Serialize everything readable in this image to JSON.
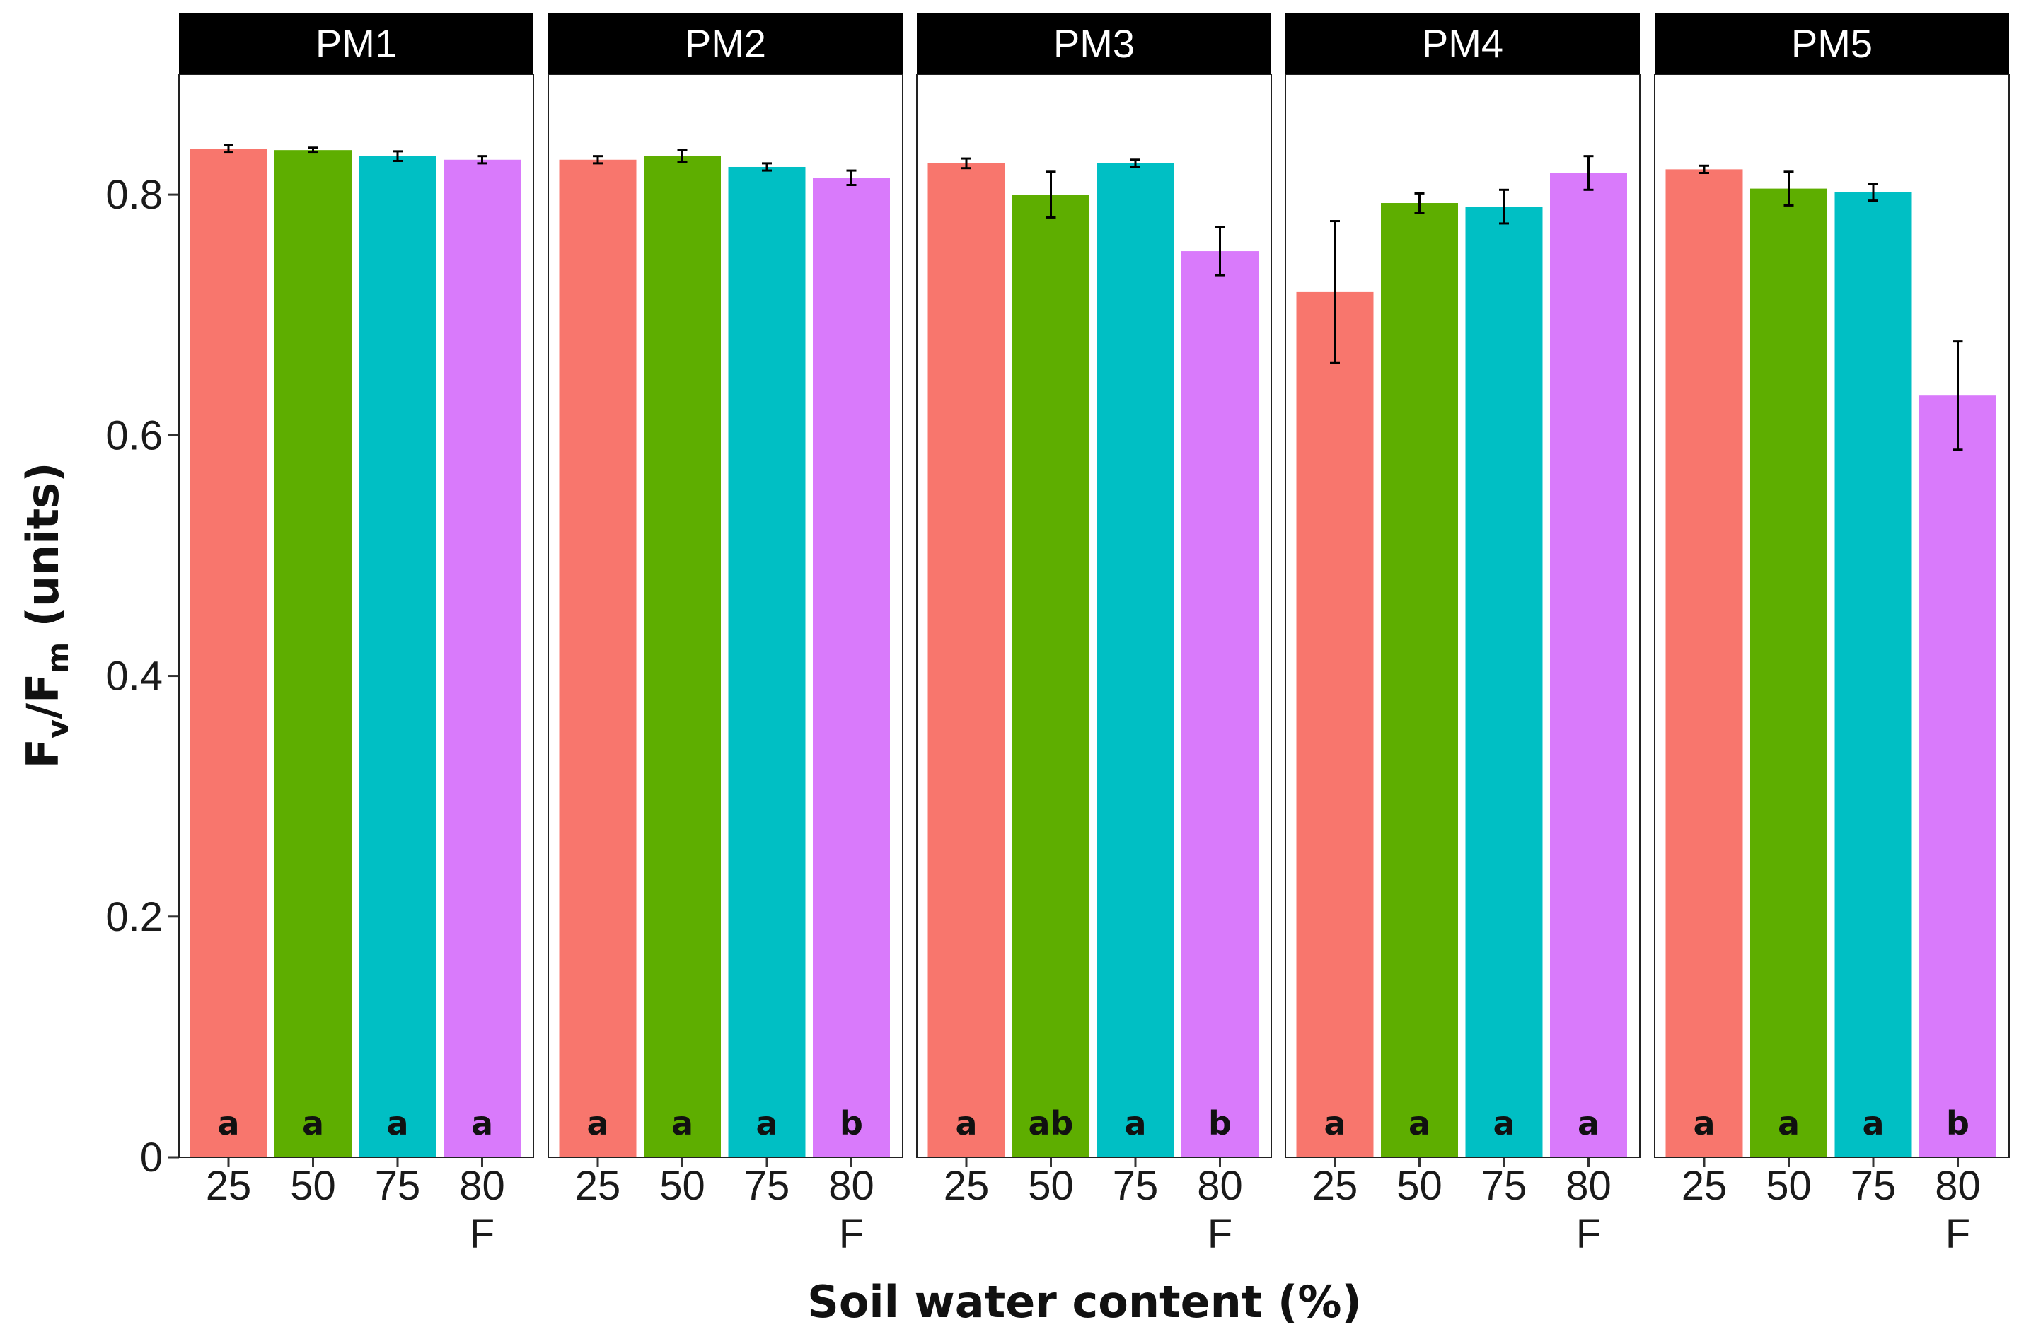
{
  "chart_data": {
    "type": "bar",
    "xlabel": "Soil water content (%)",
    "ylabel": {
      "main": "F",
      "sub_v": "v",
      "slash": "/F",
      "sub_m": "m",
      "unit": " (units)"
    },
    "ylim": [
      0,
      0.9
    ],
    "yticks": [
      0,
      0.2,
      0.4,
      0.6,
      0.8
    ],
    "ytick_labels": [
      "0",
      "0.2",
      "0.4",
      "0.6",
      "0.8"
    ],
    "grid": false,
    "categories": [
      "25",
      "50",
      "75",
      "80 F"
    ],
    "category_labels": [
      [
        "25"
      ],
      [
        "50"
      ],
      [
        "75"
      ],
      [
        "80",
        "F"
      ]
    ],
    "colors": [
      "#F8766D",
      "#5EAE00",
      "#00BFC4",
      "#D97AFB"
    ],
    "panels": [
      {
        "name": "PM1",
        "values": [
          0.838,
          0.837,
          0.832,
          0.829
        ],
        "errors": [
          0.003,
          0.002,
          0.004,
          0.003
        ],
        "letters": [
          "a",
          "a",
          "a",
          "a"
        ]
      },
      {
        "name": "PM2",
        "values": [
          0.829,
          0.832,
          0.823,
          0.814
        ],
        "errors": [
          0.003,
          0.005,
          0.003,
          0.006
        ],
        "letters": [
          "a",
          "a",
          "a",
          "b"
        ]
      },
      {
        "name": "PM3",
        "values": [
          0.826,
          0.8,
          0.826,
          0.753
        ],
        "errors": [
          0.004,
          0.019,
          0.003,
          0.02
        ],
        "letters": [
          "a",
          "ab",
          "a",
          "b"
        ]
      },
      {
        "name": "PM4",
        "values": [
          0.719,
          0.793,
          0.79,
          0.818
        ],
        "errors": [
          0.059,
          0.008,
          0.014,
          0.014
        ],
        "letters": [
          "a",
          "a",
          "a",
          "a"
        ]
      },
      {
        "name": "PM5",
        "values": [
          0.821,
          0.805,
          0.802,
          0.633
        ],
        "errors": [
          0.003,
          0.014,
          0.007,
          0.045
        ],
        "letters": [
          "a",
          "a",
          "a",
          "b"
        ]
      }
    ]
  }
}
